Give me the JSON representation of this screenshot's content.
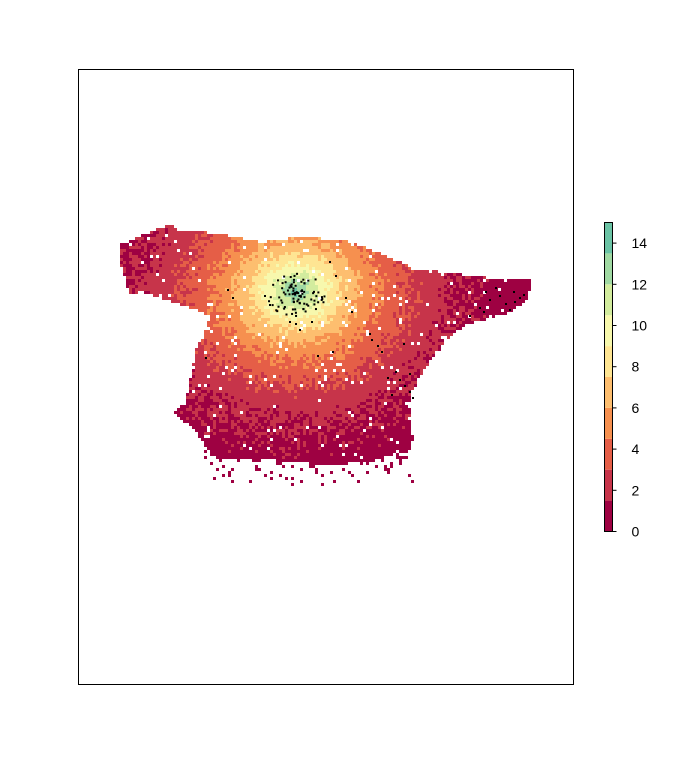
{
  "chart_data": {
    "type": "heatmap",
    "title": "",
    "xlabel": "",
    "ylabel": "",
    "axes_shown": false,
    "grid": false,
    "color_scale": {
      "min": 0,
      "max": 15,
      "break_step": 1.5,
      "colors": [
        "#9E0142",
        "#C7344A",
        "#E55E47",
        "#F6904F",
        "#FDBE6F",
        "#FEE593",
        "#F7F8AD",
        "#D2EC9E",
        "#A0D9A3",
        "#6BC3A5",
        "#4199B6",
        "#5E4FA2"
      ],
      "ticks": [
        0,
        2,
        4,
        6,
        8,
        10,
        12,
        14
      ],
      "tick_labels": [
        "0",
        "2",
        "4",
        "6",
        "8",
        "10",
        "12",
        "14"
      ],
      "legend_position": "right"
    },
    "raster_summary": {
      "region_shape": "Iberian-like land mass",
      "peak_value": 14,
      "peak_location": "north-central interior",
      "gradient": "values decrease radially from the peak toward the coasts"
    },
    "points": {
      "description": "black observation points concentrated around the peak and scattered east",
      "color": "#000000"
    }
  }
}
